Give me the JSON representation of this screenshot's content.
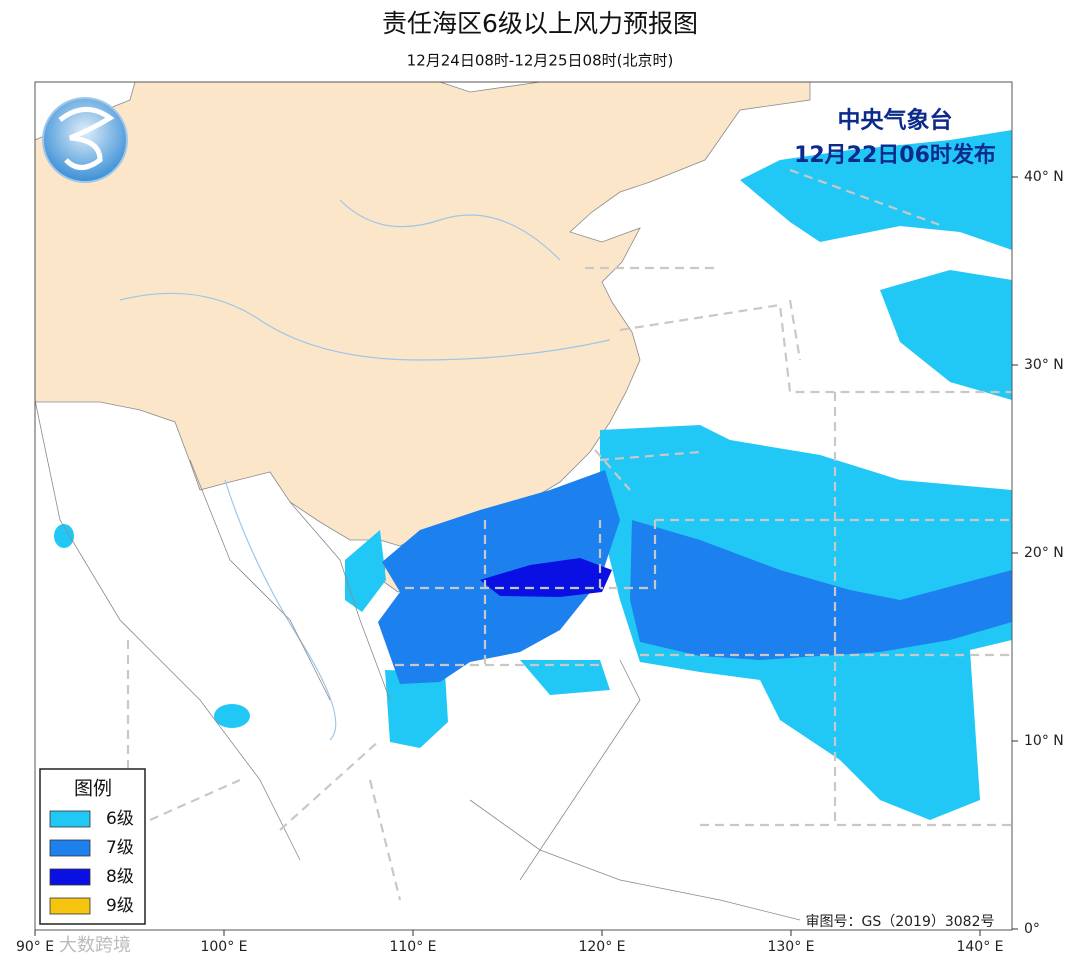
{
  "header": {
    "title": "责任海区6级以上风力预报图",
    "subtitle": "12月24日08时-12月25日08时(北京时)"
  },
  "publisher": {
    "name": "中央气象台",
    "issued": "12月22日06时发布"
  },
  "legend": {
    "title": "图例",
    "items": [
      {
        "label": "6级",
        "color": "#22c8f5"
      },
      {
        "label": "7级",
        "color": "#1d80ef"
      },
      {
        "label": "8级",
        "color": "#0a10e4"
      },
      {
        "label": "9级",
        "color": "#f5c40f"
      }
    ]
  },
  "map": {
    "lon_ticks": [
      {
        "value": 90,
        "label": "90° E"
      },
      {
        "value": 100,
        "label": "100° E"
      },
      {
        "value": 110,
        "label": "110° E"
      },
      {
        "value": 120,
        "label": "120° E"
      },
      {
        "value": 130,
        "label": "130° E"
      },
      {
        "value": 140,
        "label": "140° E"
      }
    ],
    "lat_ticks": [
      {
        "value": 40,
        "label": "40° N"
      },
      {
        "value": 30,
        "label": "30° N"
      },
      {
        "value": 20,
        "label": "20° N"
      },
      {
        "value": 10,
        "label": "10° N"
      },
      {
        "value": 0,
        "label": "0°"
      }
    ]
  },
  "approval": "审图号：GS（2019）3082号",
  "watermark": "大数跨境"
}
